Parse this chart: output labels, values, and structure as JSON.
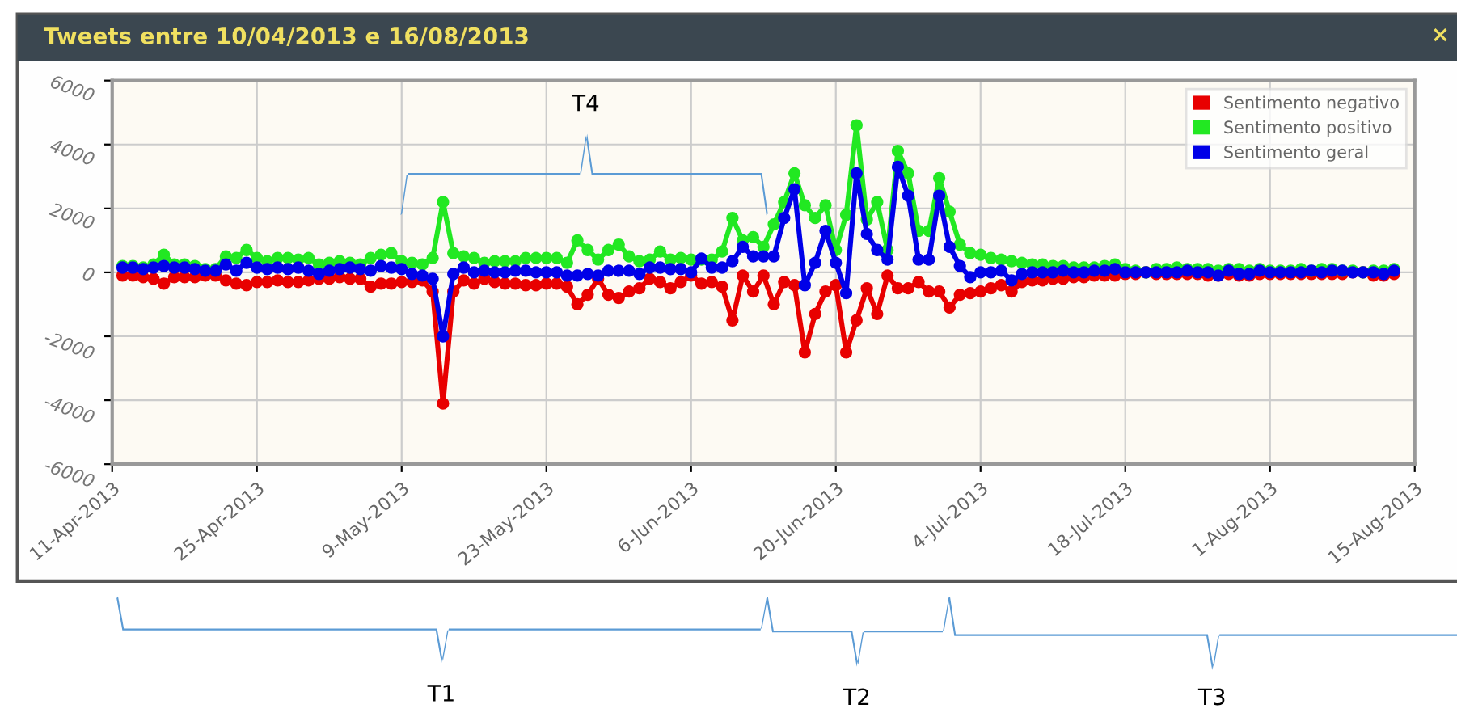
{
  "chart_data": {
    "type": "line",
    "title": "Tweets entre 10/04/2013 e 16/08/2013",
    "x": [
      "2013-04-12",
      "2013-04-13",
      "2013-04-14",
      "2013-04-15",
      "2013-04-16",
      "2013-04-17",
      "2013-04-18",
      "2013-04-19",
      "2013-04-20",
      "2013-04-21",
      "2013-04-22",
      "2013-04-23",
      "2013-04-24",
      "2013-04-25",
      "2013-04-26",
      "2013-04-27",
      "2013-04-28",
      "2013-04-29",
      "2013-04-30",
      "2013-05-01",
      "2013-05-02",
      "2013-05-03",
      "2013-05-04",
      "2013-05-05",
      "2013-05-06",
      "2013-05-07",
      "2013-05-08",
      "2013-05-09",
      "2013-05-10",
      "2013-05-11",
      "2013-05-12",
      "2013-05-13",
      "2013-05-14",
      "2013-05-15",
      "2013-05-16",
      "2013-05-17",
      "2013-05-18",
      "2013-05-19",
      "2013-05-20",
      "2013-05-21",
      "2013-05-22",
      "2013-05-23",
      "2013-05-24",
      "2013-05-25",
      "2013-05-26",
      "2013-05-27",
      "2013-05-28",
      "2013-05-29",
      "2013-05-30",
      "2013-05-31",
      "2013-06-01",
      "2013-06-02",
      "2013-06-03",
      "2013-06-04",
      "2013-06-05",
      "2013-06-06",
      "2013-06-07",
      "2013-06-08",
      "2013-06-09",
      "2013-06-10",
      "2013-06-11",
      "2013-06-12",
      "2013-06-13",
      "2013-06-14",
      "2013-06-15",
      "2013-06-16",
      "2013-06-17",
      "2013-06-18",
      "2013-06-19",
      "2013-06-20",
      "2013-06-21",
      "2013-06-22",
      "2013-06-23",
      "2013-06-24",
      "2013-06-25",
      "2013-06-26",
      "2013-06-27",
      "2013-06-28",
      "2013-06-29",
      "2013-06-30",
      "2013-07-01",
      "2013-07-02",
      "2013-07-03",
      "2013-07-04",
      "2013-07-05",
      "2013-07-06",
      "2013-07-07",
      "2013-07-08",
      "2013-07-09",
      "2013-07-10",
      "2013-07-11",
      "2013-07-12",
      "2013-07-13",
      "2013-07-14",
      "2013-07-15",
      "2013-07-16",
      "2013-07-17",
      "2013-07-18",
      "2013-07-19",
      "2013-07-20",
      "2013-07-21",
      "2013-07-22",
      "2013-07-23",
      "2013-07-24",
      "2013-07-25",
      "2013-07-26",
      "2013-07-27",
      "2013-07-28",
      "2013-07-29",
      "2013-07-30",
      "2013-07-31",
      "2013-08-01",
      "2013-08-02",
      "2013-08-03",
      "2013-08-04",
      "2013-08-05",
      "2013-08-06",
      "2013-08-07",
      "2013-08-08",
      "2013-08-09",
      "2013-08-10",
      "2013-08-11",
      "2013-08-12",
      "2013-08-13"
    ],
    "series": [
      {
        "name": "Sentimento negativo",
        "color": "#e80000",
        "values": [
          -100,
          -100,
          -150,
          -200,
          -350,
          -150,
          -150,
          -150,
          -100,
          -100,
          -250,
          -350,
          -400,
          -300,
          -300,
          -250,
          -300,
          -300,
          -250,
          -200,
          -200,
          -150,
          -200,
          -200,
          -450,
          -350,
          -350,
          -300,
          -300,
          -250,
          -600,
          -4100,
          -600,
          -250,
          -350,
          -200,
          -300,
          -350,
          -350,
          -400,
          -400,
          -350,
          -350,
          -450,
          -1000,
          -700,
          -200,
          -700,
          -800,
          -600,
          -500,
          -200,
          -300,
          -500,
          -300,
          -100,
          -350,
          -300,
          -450,
          -1500,
          -100,
          -600,
          -100,
          -1000,
          -300,
          -400,
          -2500,
          -1300,
          -600,
          -400,
          -2500,
          -1500,
          -500,
          -1300,
          -100,
          -500,
          -500,
          -300,
          -600,
          -600,
          -1100,
          -700,
          -650,
          -600,
          -500,
          -400,
          -600,
          -300,
          -250,
          -250,
          -200,
          -200,
          -150,
          -150,
          -100,
          -100,
          -100,
          -50,
          -50,
          0,
          -50,
          -50,
          -50,
          -50,
          -50,
          -100,
          -100,
          -50,
          -100,
          -100,
          -50,
          -50,
          -50,
          -50,
          -50,
          -50,
          -50,
          -50,
          -50,
          0,
          0,
          -100,
          -100,
          -50
        ]
      },
      {
        "name": "Sentimento positivo",
        "color": "#22e822",
        "values": [
          200,
          200,
          150,
          250,
          550,
          250,
          250,
          200,
          100,
          100,
          500,
          450,
          700,
          450,
          350,
          450,
          450,
          400,
          450,
          250,
          300,
          350,
          300,
          250,
          450,
          550,
          600,
          350,
          300,
          250,
          450,
          2200,
          600,
          500,
          450,
          300,
          350,
          350,
          350,
          450,
          450,
          450,
          450,
          300,
          1000,
          700,
          400,
          700,
          870,
          500,
          350,
          400,
          650,
          400,
          450,
          400,
          400,
          400,
          650,
          1700,
          1000,
          1100,
          800,
          1500,
          2200,
          3100,
          2100,
          1700,
          2100,
          700,
          1800,
          4600,
          1650,
          2200,
          700,
          3800,
          3100,
          1300,
          1300,
          2950,
          1900,
          870,
          600,
          550,
          450,
          400,
          350,
          300,
          250,
          250,
          200,
          200,
          150,
          150,
          150,
          200,
          250,
          100,
          50,
          0,
          100,
          100,
          150,
          100,
          100,
          100,
          50,
          100,
          100,
          50,
          100,
          50,
          50,
          50,
          100,
          50,
          100,
          100,
          50,
          50,
          0,
          50,
          50,
          100
        ]
      },
      {
        "name": "Sentimento geral",
        "color": "#0000e8",
        "values": [
          150,
          150,
          100,
          150,
          200,
          150,
          150,
          100,
          50,
          50,
          250,
          50,
          300,
          150,
          100,
          150,
          100,
          150,
          50,
          -50,
          50,
          100,
          150,
          100,
          50,
          200,
          150,
          100,
          -50,
          -100,
          -200,
          -2000,
          -50,
          150,
          0,
          50,
          0,
          0,
          50,
          50,
          0,
          0,
          0,
          -100,
          -100,
          -50,
          -100,
          50,
          50,
          50,
          -50,
          150,
          150,
          100,
          100,
          0,
          430,
          150,
          150,
          350,
          800,
          500,
          500,
          500,
          1700,
          2600,
          -400,
          300,
          1300,
          300,
          -650,
          3100,
          1200,
          700,
          400,
          3300,
          2400,
          400,
          400,
          2400,
          800,
          200,
          -150,
          0,
          0,
          50,
          -250,
          -50,
          0,
          0,
          0,
          50,
          0,
          0,
          50,
          50,
          100,
          0,
          0,
          0,
          0,
          0,
          0,
          50,
          0,
          0,
          -100,
          50,
          -50,
          -50,
          50,
          0,
          0,
          0,
          0,
          50,
          0,
          50,
          50,
          0,
          0,
          0,
          -50,
          50
        ]
      }
    ],
    "xlim": [
      "2013-04-11",
      "2013-08-15"
    ],
    "xticks": [
      {
        "value": "2013-04-11",
        "label": "11-Apr-2013"
      },
      {
        "value": "2013-04-25",
        "label": "25-Apr-2013"
      },
      {
        "value": "2013-05-09",
        "label": "9-May-2013"
      },
      {
        "value": "2013-05-23",
        "label": "23-May-2013"
      },
      {
        "value": "2013-06-06",
        "label": "6-Jun-2013"
      },
      {
        "value": "2013-06-20",
        "label": "20-Jun-2013"
      },
      {
        "value": "2013-07-04",
        "label": "4-Jul-2013"
      },
      {
        "value": "2013-07-18",
        "label": "18-Jul-2013"
      },
      {
        "value": "2013-08-01",
        "label": "1-Aug-2013"
      },
      {
        "value": "2013-08-15",
        "label": "15-Aug-2013"
      }
    ],
    "ylim": [
      -6000,
      6000
    ],
    "yticks": [
      -6000,
      -4000,
      -2000,
      0,
      2000,
      4000,
      6000
    ],
    "grid": true,
    "legend": "top right",
    "marker": "circle",
    "line_style": "solid",
    "annotations": [
      "T4",
      "T1",
      "T2",
      "T3",
      "×"
    ]
  }
}
